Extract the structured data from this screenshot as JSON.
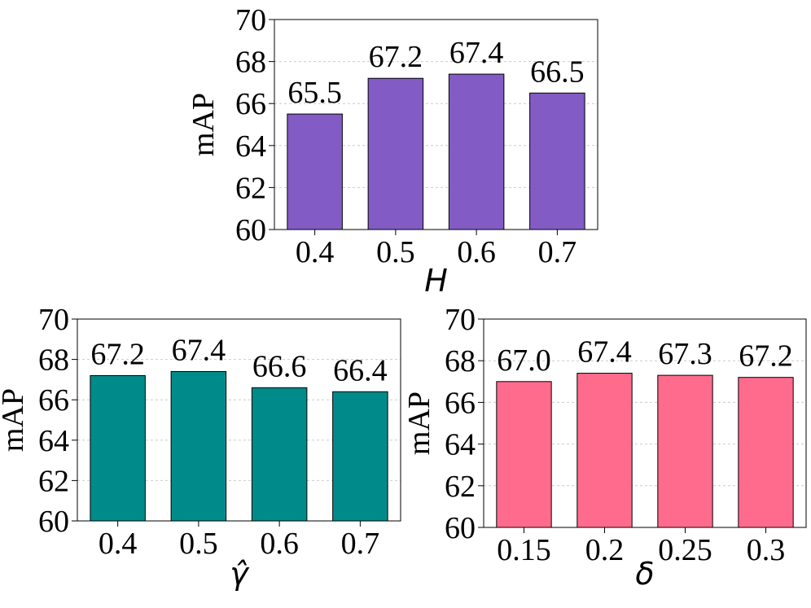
{
  "chart_data": [
    {
      "type": "bar",
      "categories": [
        "0.4",
        "0.5",
        "0.6",
        "0.7"
      ],
      "values": [
        65.5,
        67.2,
        67.4,
        66.5
      ],
      "value_labels": [
        "65.5",
        "67.2",
        "67.4",
        "66.5"
      ],
      "xlabel": "H",
      "ylabel": "mAP",
      "ylim": [
        60,
        70
      ],
      "yticks": [
        "60",
        "62",
        "64",
        "66",
        "68",
        "70"
      ],
      "grid": true,
      "color": "#825cc4"
    },
    {
      "type": "bar",
      "categories": [
        "0.4",
        "0.5",
        "0.6",
        "0.7"
      ],
      "values": [
        67.2,
        67.4,
        66.6,
        66.4
      ],
      "value_labels": [
        "67.2",
        "67.4",
        "66.6",
        "66.4"
      ],
      "xlabel": "γ̂",
      "ylabel": "mAP",
      "ylim": [
        60,
        70
      ],
      "yticks": [
        "60",
        "62",
        "64",
        "66",
        "68",
        "70"
      ],
      "grid": true,
      "color": "#008b8b"
    },
    {
      "type": "bar",
      "categories": [
        "0.15",
        "0.2",
        "0.25",
        "0.3"
      ],
      "values": [
        67.0,
        67.4,
        67.3,
        67.2
      ],
      "value_labels": [
        "67.0",
        "67.4",
        "67.3",
        "67.2"
      ],
      "xlabel": "δ",
      "ylabel": "mAP",
      "ylim": [
        60,
        70
      ],
      "yticks": [
        "60",
        "62",
        "64",
        "66",
        "68",
        "70"
      ],
      "grid": true,
      "color": "#ff6b8d"
    }
  ]
}
